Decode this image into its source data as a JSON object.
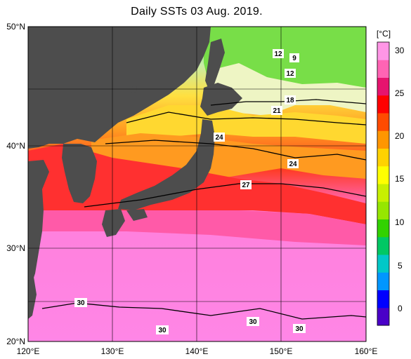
{
  "title": "Daily SSTs 03 Aug. 2019.",
  "unit": "[°C]",
  "colorbar": {
    "ticks": [
      "30",
      "25",
      "20",
      "15",
      "10",
      "5",
      "0"
    ],
    "colors": [
      "#4a00c8",
      "#0000ff",
      "#0096ff",
      "#00c8c8",
      "#00c864",
      "#32d200",
      "#96e600",
      "#c8f000",
      "#ffff00",
      "#ffd200",
      "#ff9600",
      "#ff4b00",
      "#ff0000",
      "#e6146e",
      "#ff64b4",
      "#ff96e6"
    ]
  },
  "axes": {
    "lon_labels": [
      "120°E",
      "130°E",
      "140°E",
      "150°E",
      "160°E"
    ],
    "lat_labels": [
      "50°N",
      "40°N",
      "30°N",
      "20°N"
    ]
  },
  "contour_labels": [
    "12",
    "9",
    "12",
    "18",
    "21",
    "24",
    "24",
    "27",
    "30",
    "30",
    "30",
    "30"
  ],
  "colors": {
    "land": "#4d4d4d",
    "sea_warm": "#ff7fdd",
    "sea_red": "#ff3030",
    "sea_orange": "#ff9a20",
    "sea_yellow": "#ffe040",
    "sea_cool": "#f0f5d0",
    "sea_green": "#60dc40"
  }
}
